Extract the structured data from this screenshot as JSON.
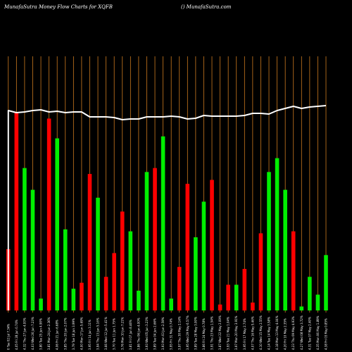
{
  "header": {
    "left": "MunafaSutra  Money Flow  Charts for XQFB",
    "right": "() MunafaSutra.com"
  },
  "chart_data": {
    "type": "bar",
    "colors": {
      "up": "#00ee00",
      "down": "#ff0000",
      "line": "#ffffff",
      "grid": "#cc7a1f",
      "background": "#000000"
    },
    "ylim": [
      0,
      100
    ],
    "categories": [
      "0 Tue 02 Jul 7.34%",
      "4.05 Fri 28 Jun 0.74%",
      "4.32 Thu 27 Jun 4.93%",
      "4.03 Wed 26 Jun 7.23%",
      "3.80 Tue 25 Jun 4.90%",
      "3.81 Mon 24 Jun 2.36%",
      "4.06 Fri 21 Jun 6.68%",
      "3.85 Thu 20 Jun 2.07%",
      "3.79 Tue 18 Jun 3.99%",
      "4.00 Mon 17 Jun 5.69%",
      "3.95 Fri 14 Jun 3.11%",
      "3.94 Thu 13 Jun 5.16%",
      "3.66 Wed 12 Jun 5.41%",
      "3.70 Tue 11 Jun 1.75%",
      "3.76 Mon 10 Jun 7.21%",
      "3.81 Fri 07 Jun 8.46%",
      "3.86 Thu 06 Jun 4.00%",
      "3.93 Wed 05 Jun 3.23%",
      "3.89 Tue 04 Jun 2.66%",
      "3.93 Mon 03 Jun 2.59%",
      "3.95 Fri 31 May 0.74%",
      "3.97 Thu 30 May 2.14%",
      "3.95 Wed 29 May 6.57%",
      "3.89 Tue 28 May 3.00%",
      "3.86 Fri 24 May 0.78%",
      "3.91 Thu 23 May 1.54%",
      "3.87 Wed 22 May 2.09%",
      "3.93 Tue 21 May 1.04%",
      "3.97 Mon 20 May 3.91%",
      "3.95 Fri 17 May 2.74%",
      "4.07 Thu 16 May 5.46%",
      "4.10 Wed 15 May 2.55%",
      "4.14 Tue 14 May 3.58%",
      "4.18 Mon 13 May 4.04%",
      "4.20 Fri 10 May 2.35%",
      "4.23 Thu 09 May 4.93%",
      "4.27 Wed 08 May 3.72%",
      "4.31 Tue 07 May 2.40%",
      "4.35 Mon 06 May 1.89%",
      "4.38 Fri 03 May 0.85%"
    ],
    "series": [
      {
        "values": [
          31,
          100,
          72,
          61,
          6,
          97,
          87,
          41,
          11,
          14,
          69,
          57,
          17,
          29,
          50,
          40,
          10,
          70,
          72,
          88,
          6,
          22,
          64,
          37,
          55,
          66,
          3,
          13,
          13,
          21,
          4,
          39,
          70,
          77,
          61,
          40,
          2,
          17,
          8,
          28
        ],
        "directions": [
          "down",
          "down",
          "up",
          "up",
          "up",
          "down",
          "up",
          "up",
          "up",
          "down",
          "down",
          "up",
          "down",
          "down",
          "down",
          "up",
          "up",
          "up",
          "down",
          "up",
          "up",
          "down",
          "down",
          "up",
          "up",
          "down",
          "down",
          "down",
          "up",
          "down",
          "down",
          "down",
          "up",
          "up",
          "up",
          "down",
          "up",
          "up",
          "up",
          "up"
        ]
      },
      {
        "type": "line",
        "values": [
          83,
          80,
          81,
          83,
          84,
          81,
          82,
          80,
          81,
          81,
          74,
          74,
          74,
          73,
          70,
          71,
          71,
          74,
          74,
          74,
          75,
          74,
          71,
          72,
          76,
          75,
          75,
          75,
          75,
          76,
          79,
          79,
          78,
          83,
          86,
          89,
          86,
          88,
          89,
          90
        ]
      }
    ]
  }
}
